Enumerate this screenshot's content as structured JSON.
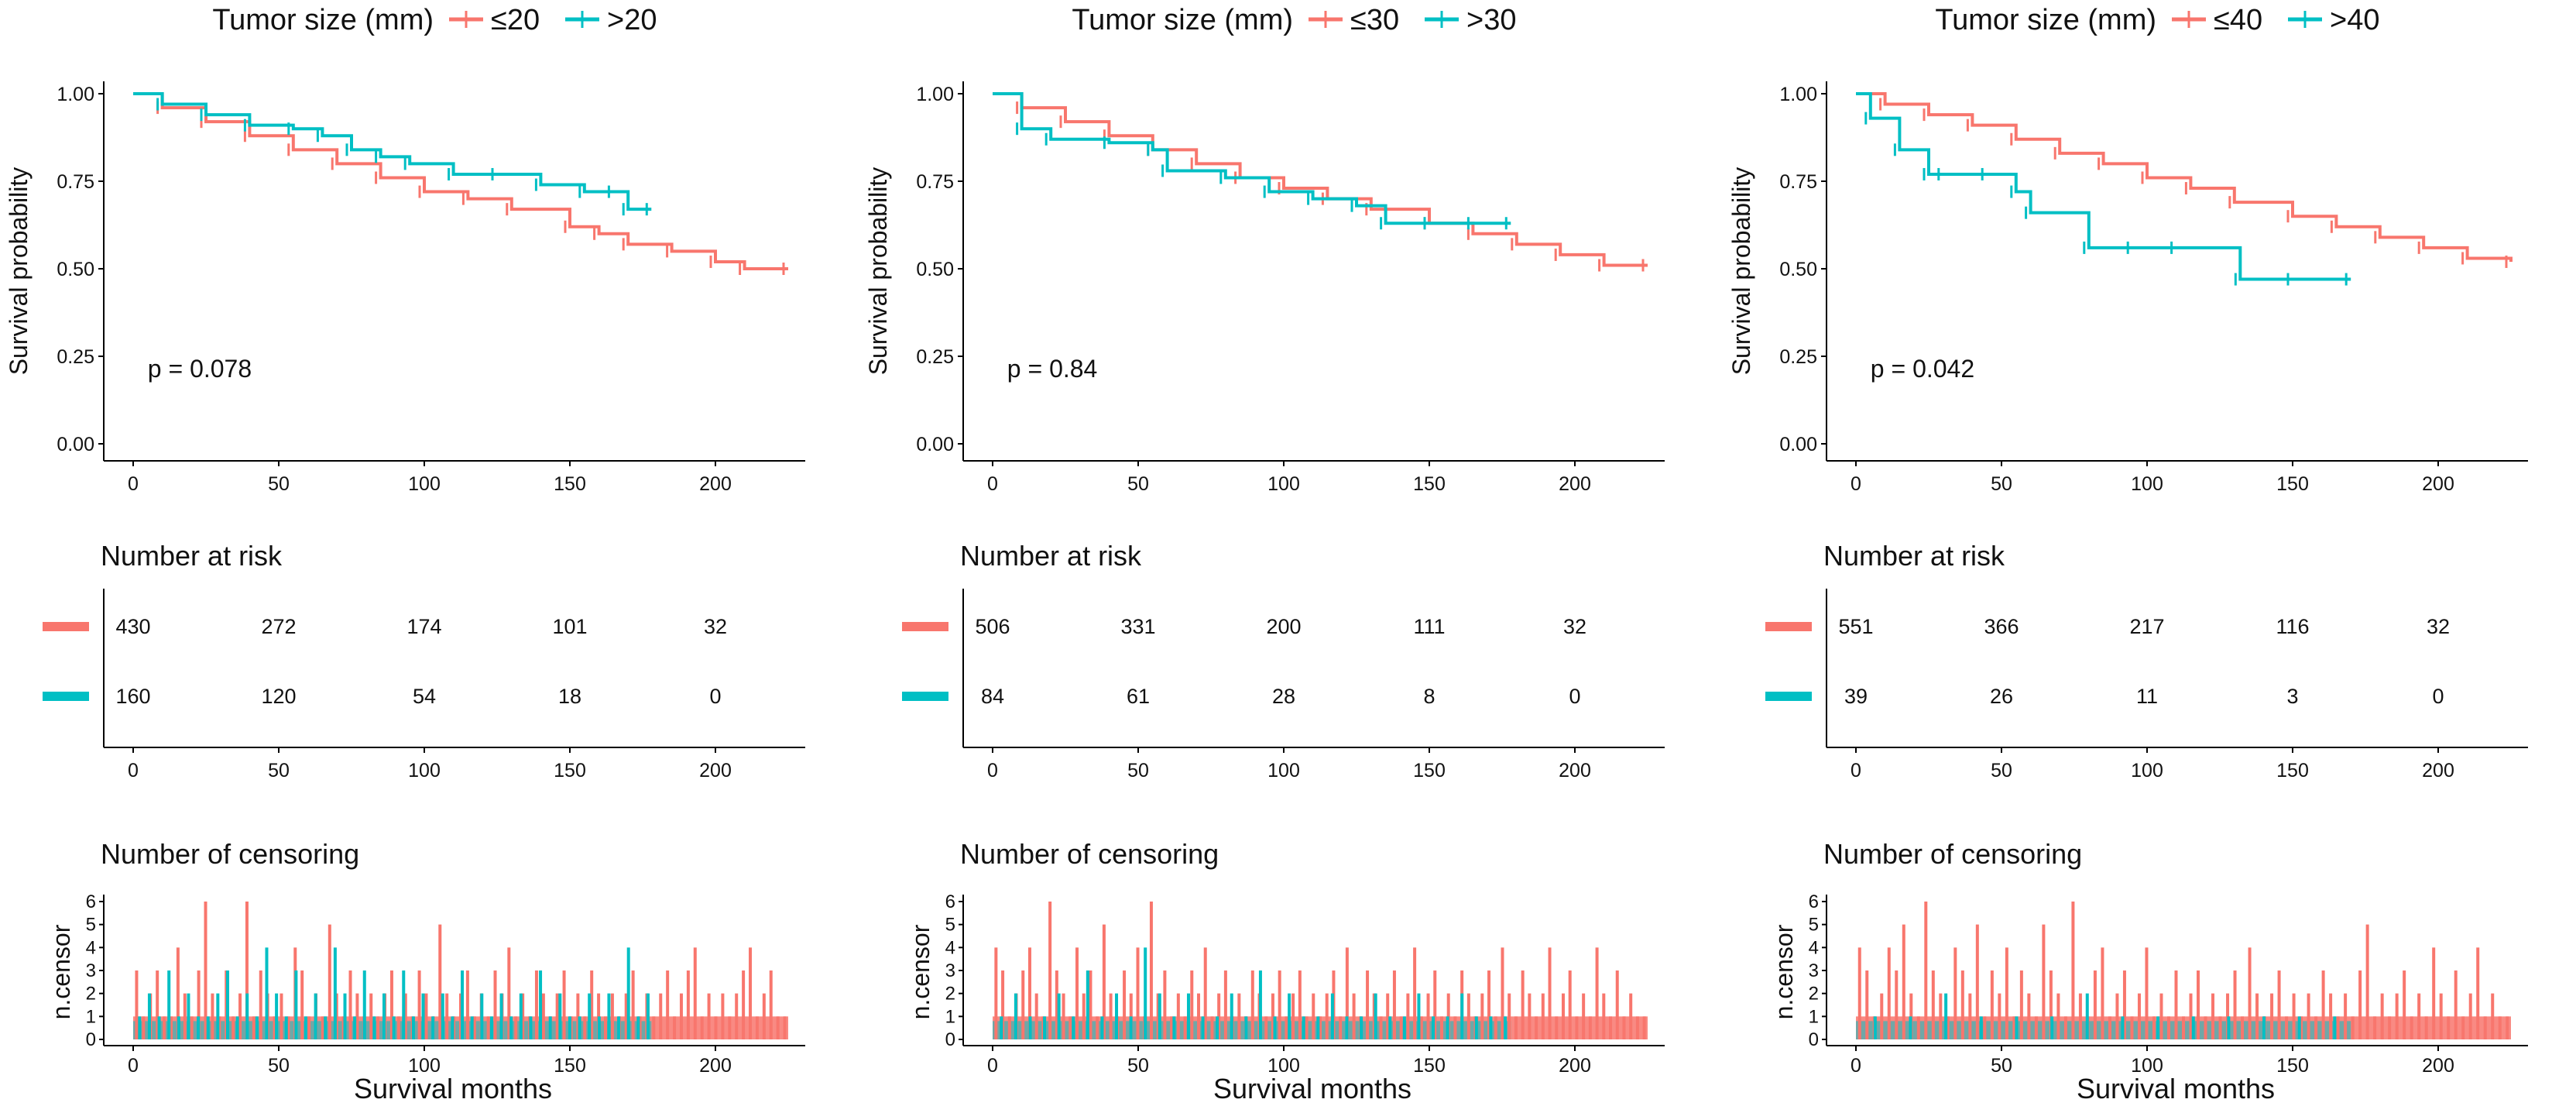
{
  "colors": {
    "low": "#F8766D",
    "high": "#00BFC4",
    "axis": "#000000",
    "text": "#111111"
  },
  "common": {
    "legend_title": "Tumor size (mm)",
    "ylabel_survival": "Survival probability",
    "risk_title": "Number at risk",
    "censor_title": "Number of censoring",
    "ylabel_censor": "n.censor",
    "xlabel": "Survival months"
  },
  "chart_data": [
    {
      "type": "line",
      "legend_low": "≤20",
      "legend_high": ">20",
      "p_value": "p = 0.078",
      "xlim": [
        0,
        225
      ],
      "ylim": [
        0,
        1
      ],
      "x_ticks": [
        0,
        50,
        100,
        150,
        200
      ],
      "x_tick_labels": [
        "0",
        "50",
        "100",
        "150",
        "200"
      ],
      "y_ticks": [
        0,
        0.25,
        0.5,
        0.75,
        1.0
      ],
      "y_tick_labels": [
        "0.00",
        "0.25",
        "0.50",
        "0.75",
        "1.00"
      ],
      "series": [
        {
          "name": "≤20",
          "x": [
            0,
            10,
            25,
            40,
            55,
            70,
            85,
            100,
            115,
            130,
            150,
            160,
            170,
            185,
            200,
            210,
            225
          ],
          "y": [
            1.0,
            0.96,
            0.92,
            0.88,
            0.84,
            0.8,
            0.76,
            0.72,
            0.7,
            0.67,
            0.62,
            0.6,
            0.57,
            0.55,
            0.52,
            0.5,
            0.5
          ]
        },
        {
          "name": ">20",
          "x": [
            0,
            10,
            25,
            40,
            55,
            65,
            75,
            85,
            95,
            110,
            125,
            140,
            155,
            165,
            170,
            178
          ],
          "y": [
            1.0,
            0.97,
            0.94,
            0.91,
            0.9,
            0.88,
            0.84,
            0.82,
            0.8,
            0.77,
            0.77,
            0.74,
            0.72,
            0.72,
            0.67,
            0.67
          ]
        }
      ],
      "risk_low": [
        "430",
        "272",
        "174",
        "101",
        "32"
      ],
      "risk_high": [
        "160",
        "120",
        "54",
        "18",
        "0"
      ],
      "censor_low": [
        3,
        1,
        2,
        3,
        1,
        1,
        4,
        2,
        1,
        3,
        6,
        2,
        1,
        3,
        1,
        2,
        6,
        1,
        3,
        2,
        1,
        2,
        1,
        4,
        3,
        1,
        2,
        1,
        5,
        2,
        1,
        3,
        2,
        1,
        2,
        1,
        2,
        3,
        1,
        2,
        1,
        3,
        2,
        1,
        5,
        2,
        1,
        2,
        3,
        1,
        2,
        1,
        3,
        2,
        4,
        1,
        2,
        1,
        3,
        2,
        1,
        2,
        3,
        1,
        2,
        1,
        3,
        2,
        1,
        2,
        1,
        2,
        3,
        1,
        2,
        1,
        2,
        3,
        1,
        2,
        3,
        4,
        1,
        2,
        1,
        2,
        1,
        2,
        3,
        4,
        1,
        2,
        3,
        1,
        1
      ],
      "censor_high": [
        1,
        2,
        1,
        3,
        1,
        2,
        1,
        1,
        2,
        3,
        1,
        2,
        1,
        4,
        2,
        1,
        3,
        1,
        2,
        1,
        4,
        2,
        1,
        3,
        1,
        2,
        1,
        3,
        1,
        2,
        1,
        2,
        1,
        3,
        1,
        2,
        1,
        2,
        1,
        2,
        1,
        3,
        1,
        2,
        1,
        1,
        2,
        1,
        2,
        1,
        4,
        1,
        2
      ]
    },
    {
      "type": "line",
      "legend_low": "≤30",
      "legend_high": ">30",
      "p_value": "p = 0.84",
      "xlim": [
        0,
        225
      ],
      "ylim": [
        0,
        1
      ],
      "x_ticks": [
        0,
        50,
        100,
        150,
        200
      ],
      "x_tick_labels": [
        "0",
        "50",
        "100",
        "150",
        "200"
      ],
      "y_ticks": [
        0,
        0.25,
        0.5,
        0.75,
        1.0
      ],
      "y_tick_labels": [
        "0.00",
        "0.25",
        "0.50",
        "0.75",
        "1.00"
      ],
      "series": [
        {
          "name": "≤30",
          "x": [
            0,
            10,
            25,
            40,
            55,
            70,
            85,
            100,
            115,
            130,
            150,
            165,
            180,
            195,
            210,
            225
          ],
          "y": [
            1.0,
            0.96,
            0.92,
            0.88,
            0.84,
            0.8,
            0.76,
            0.73,
            0.7,
            0.67,
            0.63,
            0.6,
            0.57,
            0.54,
            0.51,
            0.51
          ]
        },
        {
          "name": ">30",
          "x": [
            0,
            10,
            20,
            40,
            55,
            60,
            80,
            95,
            110,
            125,
            135,
            150,
            165,
            178
          ],
          "y": [
            1.0,
            0.9,
            0.87,
            0.86,
            0.84,
            0.78,
            0.76,
            0.72,
            0.7,
            0.68,
            0.63,
            0.63,
            0.63,
            0.63
          ]
        }
      ],
      "risk_low": [
        "506",
        "331",
        "200",
        "111",
        "32"
      ],
      "risk_high": [
        "84",
        "61",
        "28",
        "8",
        "0"
      ],
      "censor_low": [
        4,
        3,
        1,
        2,
        3,
        4,
        2,
        1,
        6,
        3,
        2,
        1,
        4,
        2,
        3,
        1,
        5,
        2,
        1,
        3,
        2,
        4,
        1,
        6,
        2,
        3,
        1,
        2,
        1,
        3,
        2,
        4,
        1,
        2,
        3,
        1,
        2,
        1,
        3,
        2,
        1,
        2,
        3,
        1,
        2,
        3,
        1,
        2,
        1,
        2,
        3,
        1,
        4,
        2,
        1,
        3,
        2,
        1,
        2,
        3,
        1,
        2,
        4,
        1,
        2,
        3,
        1,
        2,
        1,
        3,
        2,
        1,
        2,
        3,
        1,
        4,
        2,
        1,
        3,
        2,
        1,
        2,
        4,
        1,
        2,
        3,
        1,
        2,
        1,
        4,
        2,
        1,
        3,
        1,
        2,
        1,
        1
      ],
      "censor_high": [
        1,
        2,
        1,
        1,
        2,
        1,
        3,
        1,
        2,
        1,
        4,
        2,
        1,
        2,
        1,
        1,
        2,
        1,
        3,
        1,
        2,
        1,
        1,
        2,
        1,
        1,
        2,
        1,
        1,
        2,
        1,
        1,
        2,
        1,
        1,
        1
      ]
    },
    {
      "type": "line",
      "legend_low": "≤40",
      "legend_high": ">40",
      "p_value": "p = 0.042",
      "xlim": [
        0,
        225
      ],
      "ylim": [
        0,
        1
      ],
      "x_ticks": [
        0,
        50,
        100,
        150,
        200
      ],
      "x_tick_labels": [
        "0",
        "50",
        "100",
        "150",
        "200"
      ],
      "y_ticks": [
        0,
        0.25,
        0.5,
        0.75,
        1.0
      ],
      "y_tick_labels": [
        "0.00",
        "0.25",
        "0.50",
        "0.75",
        "1.00"
      ],
      "series": [
        {
          "name": "≤40",
          "x": [
            0,
            10,
            25,
            40,
            55,
            70,
            85,
            100,
            115,
            130,
            150,
            165,
            180,
            195,
            210,
            225
          ],
          "y": [
            1.0,
            0.97,
            0.94,
            0.91,
            0.87,
            0.83,
            0.8,
            0.76,
            0.73,
            0.69,
            0.65,
            0.62,
            0.59,
            0.56,
            0.53,
            0.52
          ]
        },
        {
          "name": ">40",
          "x": [
            0,
            5,
            15,
            25,
            30,
            45,
            55,
            60,
            80,
            95,
            110,
            132,
            150,
            170
          ],
          "y": [
            1.0,
            0.93,
            0.84,
            0.77,
            0.77,
            0.77,
            0.72,
            0.66,
            0.56,
            0.56,
            0.56,
            0.47,
            0.47,
            0.47
          ]
        }
      ],
      "risk_low": [
        "551",
        "366",
        "217",
        "116",
        "32"
      ],
      "risk_high": [
        "39",
        "26",
        "11",
        "3",
        "0"
      ],
      "censor_low": [
        4,
        3,
        1,
        2,
        4,
        3,
        5,
        2,
        1,
        6,
        3,
        2,
        1,
        4,
        3,
        2,
        5,
        1,
        3,
        2,
        4,
        1,
        3,
        2,
        1,
        5,
        3,
        2,
        1,
        6,
        2,
        1,
        3,
        4,
        1,
        2,
        3,
        1,
        2,
        4,
        1,
        2,
        1,
        3,
        1,
        2,
        3,
        1,
        2,
        1,
        2,
        3,
        1,
        4,
        2,
        1,
        2,
        3,
        1,
        2,
        1,
        2,
        1,
        3,
        2,
        1,
        2,
        1,
        3,
        5,
        1,
        2,
        1,
        2,
        3,
        1,
        2,
        1,
        4,
        2,
        1,
        3,
        1,
        2,
        4,
        1,
        2,
        1,
        1
      ],
      "censor_high": [
        1,
        1,
        2,
        1,
        1,
        1,
        2,
        1,
        1,
        1,
        1,
        1,
        1,
        1
      ]
    }
  ]
}
